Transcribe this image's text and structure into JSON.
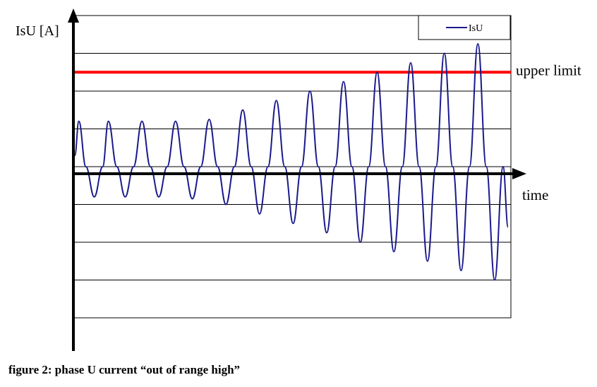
{
  "chart_data": {
    "type": "line",
    "ylabel": "IsU [A]",
    "xlabel": "time",
    "ylim": [
      -4,
      4
    ],
    "grid": true,
    "legend": {
      "placement": "top-right",
      "entries": [
        "IsU"
      ]
    },
    "threshold": {
      "label": "upper limit",
      "value": 2.5,
      "color": "#ff0000"
    },
    "series": [
      {
        "name": "IsU",
        "color": "#1a1a8c",
        "x": [
          0,
          0.12,
          0.33,
          0.58,
          0.83,
          1,
          1.25,
          1.5,
          1.75,
          2,
          2.25,
          2.5,
          2.75,
          3,
          3.25,
          3.5,
          3.75,
          4,
          4.25,
          4.5,
          4.75,
          5,
          5.25,
          5.5,
          5.75,
          6,
          6.25,
          6.5,
          6.75,
          7,
          7.25,
          7.5,
          7.75,
          8,
          8.25,
          8.5,
          8.75,
          9,
          9.25,
          9.5,
          9.75,
          10,
          10.25,
          10.5,
          10.75,
          11,
          11.25,
          11.5,
          11.75,
          12,
          12.25,
          12.5,
          12.75,
          12.9
        ],
        "values": [
          0.3,
          1.2,
          0.0,
          -0.8,
          0.0,
          1.2,
          0.0,
          -0.8,
          0.0,
          1.2,
          0.0,
          -0.8,
          0.0,
          1.2,
          0.0,
          -0.85,
          0.0,
          1.25,
          0.0,
          -1.0,
          0.0,
          1.5,
          0.0,
          -1.25,
          0.0,
          1.75,
          0.0,
          -1.5,
          0.0,
          2.0,
          0.0,
          -1.75,
          0.0,
          2.25,
          0.0,
          -2.0,
          0.0,
          2.5,
          0.0,
          -2.25,
          0.0,
          2.75,
          0.0,
          -2.5,
          0.0,
          3.0,
          0.0,
          -2.75,
          0.0,
          3.25,
          0.0,
          -3.0,
          0.0,
          -1.6
        ]
      }
    ]
  },
  "caption": "figure 2: phase U current “out of range high”"
}
